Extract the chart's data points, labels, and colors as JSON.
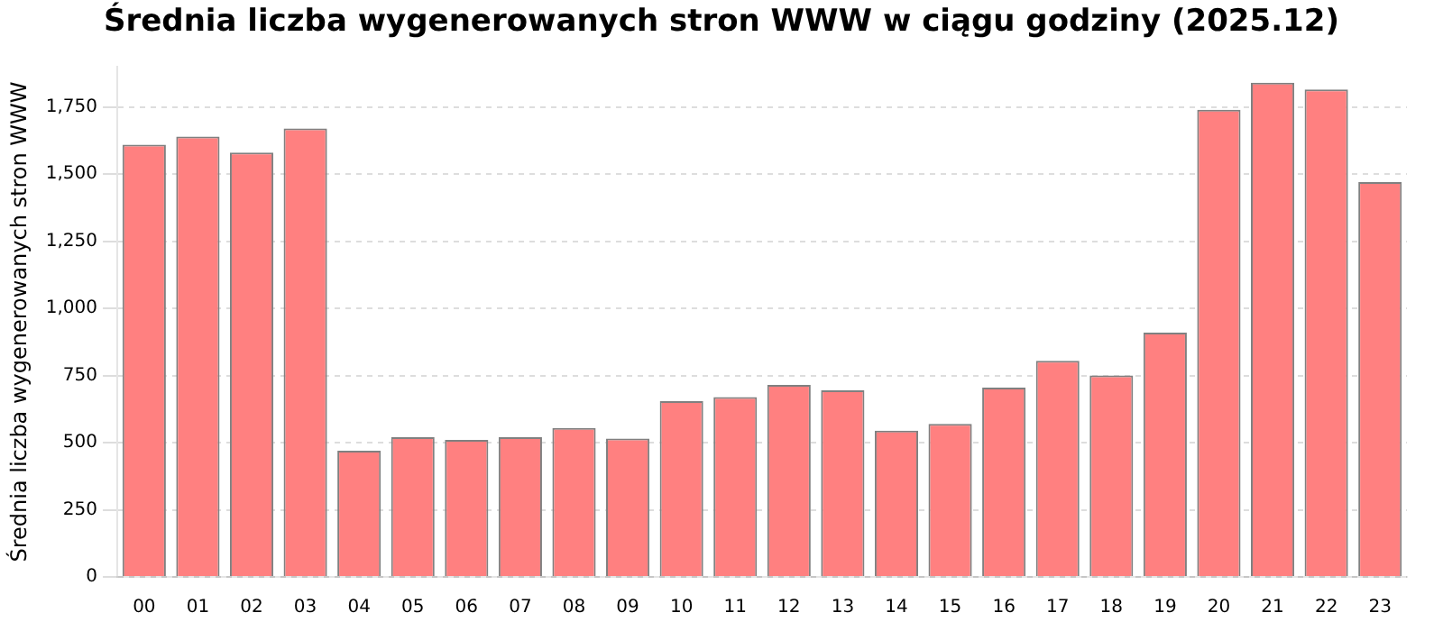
{
  "chart_data": {
    "type": "bar",
    "title": "Średnia liczba wygenerowanych stron WWW w ciągu godziny (2025.12)",
    "ylabel": "Średnia liczba wygenerowanych stron WWW",
    "categories": [
      "00",
      "01",
      "02",
      "03",
      "04",
      "05",
      "06",
      "07",
      "08",
      "09",
      "10",
      "11",
      "12",
      "13",
      "14",
      "15",
      "16",
      "17",
      "18",
      "19",
      "20",
      "21",
      "22",
      "23"
    ],
    "values": [
      1610,
      1640,
      1580,
      1670,
      470,
      520,
      510,
      520,
      555,
      515,
      655,
      670,
      715,
      695,
      545,
      570,
      705,
      805,
      750,
      910,
      1740,
      1840,
      1815,
      1470
    ],
    "color": "#ff8080",
    "ylim": [
      0,
      1900
    ],
    "yticks": [
      0,
      250,
      500,
      750,
      {
        "value": 1000,
        "label": "1,000"
      },
      {
        "value": 1250,
        "label": "1,250"
      },
      {
        "value": 1500,
        "label": "1,500"
      },
      {
        "value": 1750,
        "label": "1,750"
      }
    ],
    "grid": "y",
    "legend": false
  }
}
